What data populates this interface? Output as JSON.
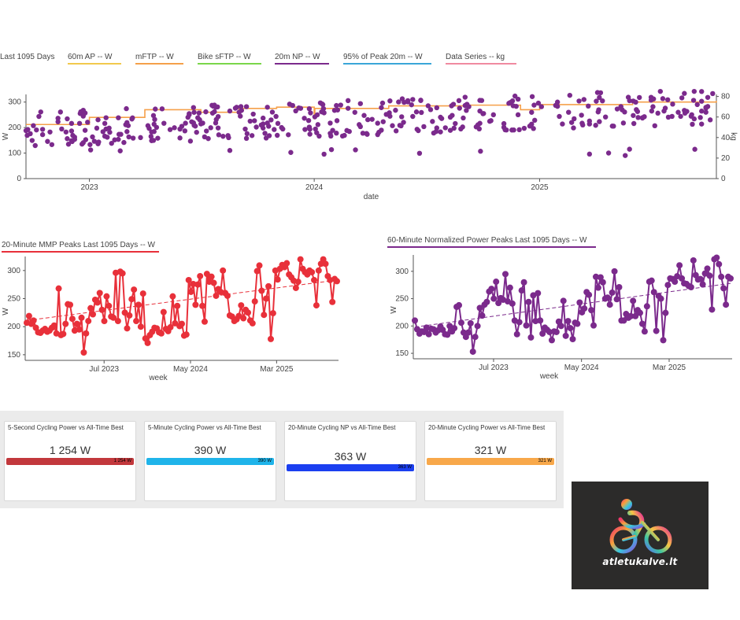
{
  "legend": {
    "period": "Last 1095 Days",
    "items": [
      {
        "label": "60m AP  -- W",
        "color": "#f2c94c"
      },
      {
        "label": "mFTP  -- W",
        "color": "#f5a04a"
      },
      {
        "label": "Bike sFTP  -- W",
        "color": "#7ad64a"
      },
      {
        "label": "20m NP  -- W",
        "color": "#7b2a8c"
      },
      {
        "label": "95% of Peak 20m  -- W",
        "color": "#3aa6d8"
      },
      {
        "label": "Data Series  -- kg",
        "color": "#f08aa0"
      }
    ]
  },
  "main_chart": {
    "xlabel": "date",
    "ylabel": "W",
    "y2label": "kg",
    "yticks": [
      "0",
      "100",
      "200",
      "300"
    ],
    "y2ticks": [
      "0",
      "20",
      "40",
      "60",
      "80"
    ],
    "xticks": [
      "2023",
      "2024",
      "2025"
    ]
  },
  "mmp_chart": {
    "title": "20-Minute MMP Peaks   Last 1095 Days   -- W",
    "title_color": "#e8303a",
    "xlabel": "week",
    "ylabel": "W",
    "yticks": [
      "150",
      "200",
      "250",
      "300"
    ],
    "xticks": [
      "Jul 2023",
      "May 2024",
      "Mar 2025"
    ]
  },
  "np_chart": {
    "title": "60-Minute Normalized Power Peaks   Last 1095 Days   -- W",
    "title_color": "#7b2a8c",
    "xlabel": "week",
    "ylabel": "W",
    "yticks": [
      "150",
      "200",
      "250",
      "300"
    ],
    "xticks": [
      "Jul 2023",
      "May 2024",
      "Mar 2025"
    ]
  },
  "tiles": [
    {
      "title": "5-Second Cycling Power vs All-Time Best",
      "value": "1 254 W",
      "bar_label": "1 254 W",
      "color": "#c2383c",
      "fill": 1.0
    },
    {
      "title": "5-Minute Cycling Power vs All-Time Best",
      "value": "390 W",
      "bar_label": "390 W",
      "color": "#1fb4ea",
      "fill": 1.0
    },
    {
      "title": "20-Minute Cycling NP vs All-Time Best",
      "value": "363 W",
      "bar_label": "363 W",
      "color": "#1b3ff0",
      "fill": 1.0
    },
    {
      "title": "20-Minute Cycling Power vs All-Time Best",
      "value": "321 W",
      "bar_label": "321 W",
      "color": "#f8a84a",
      "fill": 1.0
    }
  ],
  "logo": {
    "text": "atletukalve.lt"
  },
  "chart_data": [
    {
      "type": "scatter",
      "title": "",
      "xlabel": "date",
      "ylabel": "W",
      "y2label": "kg",
      "xlim": [
        "2022-09-20",
        "2025-10-15"
      ],
      "ylim": [
        0,
        330
      ],
      "y2lim": [
        0,
        82
      ],
      "series": [
        {
          "name": "20m NP  -- W",
          "color": "#7b2a8c",
          "kind": "points",
          "y_range": [
            85,
            350
          ]
        },
        {
          "name": "mFTP  -- W",
          "color": "#f5a04a",
          "kind": "step",
          "y_range": [
            210,
            300
          ]
        }
      ]
    },
    {
      "type": "line",
      "title": "20-Minute MMP Peaks   Last 1095 Days   -- W",
      "xlabel": "week",
      "ylabel": "W",
      "ylim": [
        140,
        325
      ],
      "x_start": "2022-10-01",
      "x_end": "2025-09-30",
      "series": [
        {
          "name": "20-Minute MMP Peaks",
          "color": "#e8303a",
          "values": [
            207,
            219,
            205,
            211,
            198,
            190,
            189,
            193,
            196,
            191,
            193,
            198,
            202,
            188,
            268,
            185,
            187,
            205,
            240,
            239,
            214,
            193,
            205,
            195,
            216,
            154,
            188,
            210,
            233,
            222,
            248,
            243,
            260,
            230,
            210,
            254,
            237,
            218,
            216,
            296,
            210,
            298,
            295,
            225,
            197,
            220,
            249,
            266,
            210,
            239,
            200,
            259,
            179,
            171,
            185,
            191,
            198,
            197,
            190,
            188,
            226,
            196,
            192,
            199,
            254,
            206,
            237,
            201,
            205,
            184,
            186,
            283,
            262,
            276,
            239,
            275,
            290,
            237,
            209,
            294,
            280,
            289,
            278,
            255,
            267,
            262,
            300,
            260,
            255,
            220,
            218,
            210,
            213,
            219,
            238,
            215,
            230,
            225,
            211,
            206,
            245,
            299,
            309,
            264,
            221,
            250,
            272,
            178,
            224,
            300,
            284,
            303,
            310,
            306,
            313,
            293,
            288,
            282,
            269,
            280,
            320,
            303,
            297,
            293,
            300,
            297,
            283,
            238,
            300,
            312,
            320,
            312,
            290,
            283,
            244,
            285,
            281
          ]
        },
        {
          "name": "trend",
          "color": "#e8303a",
          "kind": "dashed",
          "values": [
            211,
            283
          ]
        }
      ]
    },
    {
      "type": "line",
      "title": "60-Minute Normalized Power Peaks   Last 1095 Days   -- W",
      "xlabel": "week",
      "ylabel": "W",
      "ylim": [
        140,
        330
      ],
      "x_start": "2022-10-01",
      "x_end": "2025-09-30",
      "series": [
        {
          "name": "60-Minute Normalized Power Peaks",
          "color": "#7b2a8c",
          "values": [
            210,
            194,
            186,
            190,
            189,
            197,
            185,
            195,
            194,
            188,
            192,
            199,
            193,
            185,
            184,
            200,
            190,
            196,
            235,
            238,
            206,
            188,
            180,
            188,
            205,
            153,
            180,
            200,
            233,
            219,
            239,
            244,
            263,
            268,
            250,
            281,
            242,
            251,
            248,
            295,
            245,
            270,
            241,
            210,
            185,
            207,
            265,
            280,
            201,
            244,
            179,
            256,
            209,
            260,
            210,
            186,
            197,
            193,
            189,
            174,
            190,
            189,
            208,
            200,
            246,
            182,
            209,
            196,
            176,
            206,
            204,
            243,
            225,
            232,
            262,
            257,
            229,
            201,
            290,
            270,
            289,
            280,
            250,
            252,
            239,
            261,
            300,
            249,
            271,
            210,
            210,
            222,
            215,
            218,
            246,
            218,
            229,
            224,
            204,
            190,
            236,
            281,
            283,
            262,
            191,
            255,
            250,
            174,
            224,
            275,
            287,
            286,
            281,
            291,
            311,
            287,
            278,
            277,
            273,
            271,
            320,
            293,
            285,
            286,
            276,
            296,
            305,
            292,
            230,
            322,
            325,
            313,
            290,
            269,
            239,
            290,
            287
          ]
        },
        {
          "name": "trend",
          "color": "#7b2a8c",
          "kind": "dashed",
          "values": [
            198,
            278
          ]
        }
      ]
    }
  ]
}
